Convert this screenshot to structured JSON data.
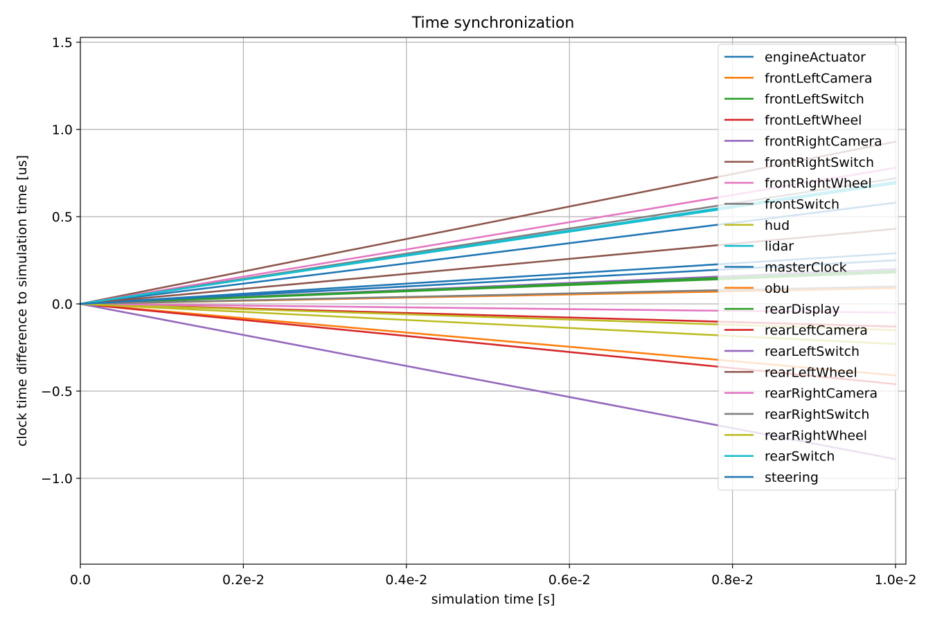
{
  "chart_data": {
    "type": "line",
    "title": "Time synchronization",
    "xlabel": "simulation time [s]",
    "ylabel": "clock time difference to simulation time [us]",
    "xlim": [
      0,
      0.01
    ],
    "ylim": [
      -1.5,
      1.53
    ],
    "grid": true,
    "legend_position": "top-right",
    "x_ticks": [
      {
        "value": 0,
        "label": "0.0"
      },
      {
        "value": 0.002,
        "label": "0.2e-2"
      },
      {
        "value": 0.004,
        "label": "0.4e-2"
      },
      {
        "value": 0.006,
        "label": "0.6e-2"
      },
      {
        "value": 0.008,
        "label": "0.8e-2"
      },
      {
        "value": 0.01,
        "label": "1.0e-2"
      }
    ],
    "y_ticks": [
      {
        "value": 1.5,
        "label": "1.5"
      },
      {
        "value": 1.0,
        "label": "1.0"
      },
      {
        "value": 0.5,
        "label": "0.5"
      },
      {
        "value": 0.0,
        "label": "0.0"
      },
      {
        "value": -0.5,
        "label": "−0.5"
      },
      {
        "value": -1.0,
        "label": "−1.0"
      }
    ],
    "x": [
      0,
      0.01
    ],
    "series": [
      {
        "name": "engineActuator",
        "color": "#1f77b4",
        "values": [
          0,
          0.58
        ]
      },
      {
        "name": "frontLeftCamera",
        "color": "#ff7f0e",
        "values": [
          0,
          -0.41
        ]
      },
      {
        "name": "frontLeftSwitch",
        "color": "#2ca02c",
        "values": [
          0,
          0.18
        ]
      },
      {
        "name": "frontLeftWheel",
        "color": "#d62728",
        "values": [
          0,
          -0.13
        ]
      },
      {
        "name": "frontRightCamera",
        "color": "#9467bd",
        "values": [
          0,
          0.2
        ]
      },
      {
        "name": "frontRightSwitch",
        "color": "#8c564b",
        "values": [
          0,
          0.93
        ]
      },
      {
        "name": "frontRightWheel",
        "color": "#e377c2",
        "values": [
          0,
          0.78
        ]
      },
      {
        "name": "frontSwitch",
        "color": "#7f7f7f",
        "values": [
          0,
          0.72
        ]
      },
      {
        "name": "hud",
        "color": "#bcbd22",
        "values": [
          0,
          -0.15
        ]
      },
      {
        "name": "lidar",
        "color": "#17becf",
        "values": [
          0,
          0.69
        ]
      },
      {
        "name": "masterClock",
        "color": "#1f77b4",
        "values": [
          0,
          0.29
        ]
      },
      {
        "name": "obu",
        "color": "#ff7f0e",
        "values": [
          0,
          0.09
        ]
      },
      {
        "name": "rearDisplay",
        "color": "#2ca02c",
        "values": [
          0,
          0.19
        ]
      },
      {
        "name": "rearLeftCamera",
        "color": "#d62728",
        "values": [
          0,
          -0.46
        ]
      },
      {
        "name": "rearLeftSwitch",
        "color": "#9467bd",
        "values": [
          0,
          -0.89
        ]
      },
      {
        "name": "rearLeftWheel",
        "color": "#8c564b",
        "values": [
          0,
          0.43
        ]
      },
      {
        "name": "rearRightCamera",
        "color": "#e377c2",
        "values": [
          0,
          -0.05
        ]
      },
      {
        "name": "rearRightSwitch",
        "color": "#7f7f7f",
        "values": [
          0,
          0.1
        ]
      },
      {
        "name": "rearRightWheel",
        "color": "#bcbd22",
        "values": [
          0,
          -0.23
        ]
      },
      {
        "name": "rearSwitch",
        "color": "#17becf",
        "values": [
          0,
          0.7
        ]
      },
      {
        "name": "steering",
        "color": "#1f77b4",
        "values": [
          0,
          0.25
        ]
      }
    ]
  }
}
